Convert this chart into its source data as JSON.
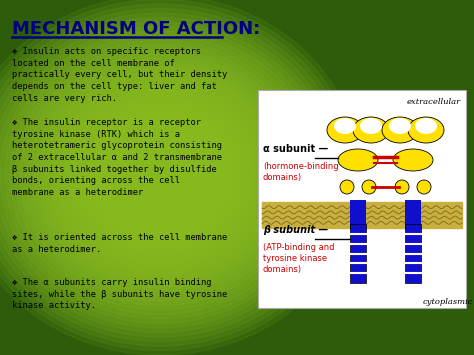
{
  "title": "MECHANISM OF ACTION:",
  "title_color": "#000080",
  "bg_green_dark": "#2a5a08",
  "bg_green_mid": "#4a8a12",
  "bg_green_light": "#7ab830",
  "bullet1": "❖ Insulin acts on specific receptors\nlocated on the cell membrane of\npractically every cell, but their density\ndepends on the cell type: liver and fat\ncells are very rich.",
  "bullet2": "❖ The insulin receptor is a receptor\ntyrosine kinase (RTK) which is a\nheterotetrameric glycoprotein consisting\nof 2 extracellular α and 2 transmembrane\nβ subunits linked together by disulfide\nbonds, orienting across the cell\nmembrane as a heterodimer",
  "bullet3": "❖ It is oriented across the cell membrane\nas a heterodimer.",
  "bullet4": "❖ The α subunits carry insulin binding\nsites, while the β subunits have tyrosine\nkinase activity.",
  "diag_extracellular": "extracellular",
  "diag_cytoplasmic": "cytoplasmic",
  "diag_alpha_label": "α subunit —",
  "diag_alpha_sub": "(hormone-binding\ndomains)",
  "diag_beta_label": "β subunit —",
  "diag_beta_sub": "(ATP-binding and\ntyrosine kinase\ndomains)",
  "yellow": "#FFE000",
  "blue": "#1010CC",
  "red": "#CC0000",
  "diag_bg": "#ffffff",
  "text_black": "#000000",
  "text_red": "#CC0000",
  "text_darkblue": "#000080"
}
